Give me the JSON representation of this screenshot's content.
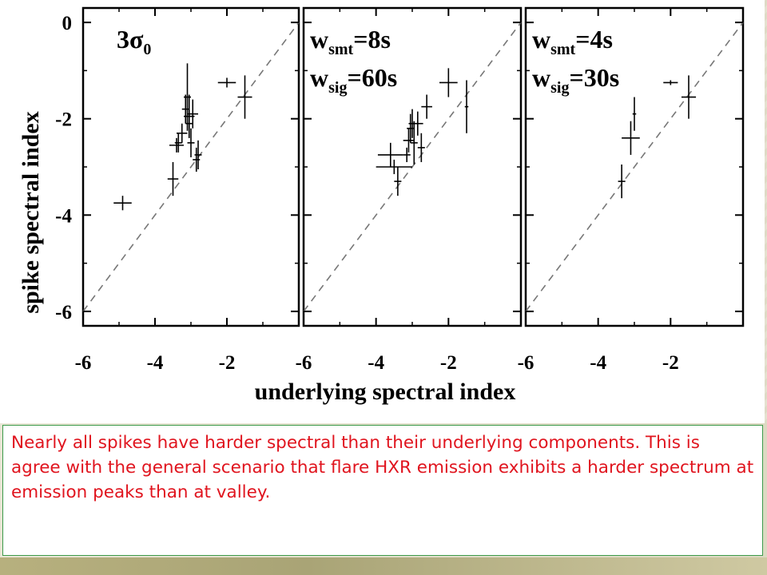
{
  "chart_data": {
    "type": "scatter",
    "xlabel": "underlying spectral index",
    "ylabel": "spike spectral index",
    "xlim": [
      -6,
      0
    ],
    "ylim": [
      -6.3,
      0.3
    ],
    "x_ticks": [
      -6,
      -4,
      -2
    ],
    "y_ticks": [
      0,
      -2,
      -4,
      -6
    ],
    "reference_line": "y = x (dashed)",
    "panels": [
      {
        "annotation": [
          {
            "main": "3σ",
            "sub": "0",
            "eq": ""
          }
        ],
        "points": [
          {
            "x": -4.9,
            "y": -3.75,
            "xerr": 0.25,
            "yerr": 0.15
          },
          {
            "x": -3.5,
            "y": -3.25,
            "xerr": 0.15,
            "yerr": 0.35
          },
          {
            "x": -3.4,
            "y": -2.55,
            "xerr": 0.2,
            "yerr": 0.15
          },
          {
            "x": -3.35,
            "y": -2.5,
            "xerr": 0.1,
            "yerr": 0.2
          },
          {
            "x": -3.25,
            "y": -2.3,
            "xerr": 0.15,
            "yerr": 0.2
          },
          {
            "x": -3.15,
            "y": -1.8,
            "xerr": 0.1,
            "yerr": 0.3
          },
          {
            "x": -3.1,
            "y": -1.55,
            "xerr": 0.1,
            "yerr": 0.7
          },
          {
            "x": -3.05,
            "y": -1.95,
            "xerr": 0.15,
            "yerr": 0.45
          },
          {
            "x": -3.05,
            "y": -2.1,
            "xerr": 0.1,
            "yerr": 0.3
          },
          {
            "x": -3.0,
            "y": -2.5,
            "xerr": 0.1,
            "yerr": 0.3
          },
          {
            "x": -2.95,
            "y": -1.9,
            "xerr": 0.15,
            "yerr": 0.3
          },
          {
            "x": -2.85,
            "y": -2.85,
            "xerr": 0.1,
            "yerr": 0.25
          },
          {
            "x": -2.8,
            "y": -2.75,
            "xerr": 0.1,
            "yerr": 0.3
          },
          {
            "x": -2.0,
            "y": -1.25,
            "xerr": 0.25,
            "yerr": 0.1
          },
          {
            "x": -1.5,
            "y": -1.55,
            "xerr": 0.2,
            "yerr": 0.45
          }
        ]
      },
      {
        "annotation": [
          {
            "main": "w",
            "sub": "smt",
            "eq": "=8s"
          },
          {
            "main": "w",
            "sub": "sig",
            "eq": "=60s"
          }
        ],
        "points": [
          {
            "x": -3.6,
            "y": -2.75,
            "xerr": 0.35,
            "yerr": 0.25
          },
          {
            "x": -3.5,
            "y": -3.0,
            "xerr": 0.5,
            "yerr": 0.15
          },
          {
            "x": -3.4,
            "y": -3.3,
            "xerr": 0.1,
            "yerr": 0.3
          },
          {
            "x": -3.15,
            "y": -2.75,
            "xerr": 0.1,
            "yerr": 0.15
          },
          {
            "x": -3.1,
            "y": -2.45,
            "xerr": 0.15,
            "yerr": 0.25
          },
          {
            "x": -3.05,
            "y": -2.2,
            "xerr": 0.1,
            "yerr": 0.3
          },
          {
            "x": -3.0,
            "y": -2.1,
            "xerr": 0.1,
            "yerr": 0.3
          },
          {
            "x": -2.95,
            "y": -2.5,
            "xerr": 0.1,
            "yerr": 0.45
          },
          {
            "x": -2.85,
            "y": -2.1,
            "xerr": 0.15,
            "yerr": 0.25
          },
          {
            "x": -2.75,
            "y": -2.6,
            "xerr": 0.1,
            "yerr": 0.3
          },
          {
            "x": -2.6,
            "y": -1.75,
            "xerr": 0.15,
            "yerr": 0.25
          },
          {
            "x": -2.0,
            "y": -1.25,
            "xerr": 0.25,
            "yerr": 0.3
          },
          {
            "x": -1.5,
            "y": -1.75,
            "xerr": 0.05,
            "yerr": 0.55
          }
        ]
      },
      {
        "annotation": [
          {
            "main": "w",
            "sub": "smt",
            "eq": "=4s"
          },
          {
            "main": "w",
            "sub": "sig",
            "eq": "=30s"
          }
        ],
        "points": [
          {
            "x": -3.35,
            "y": -3.3,
            "xerr": 0.1,
            "yerr": 0.35
          },
          {
            "x": -3.1,
            "y": -2.4,
            "xerr": 0.25,
            "yerr": 0.35
          },
          {
            "x": -3.0,
            "y": -1.9,
            "xerr": 0.05,
            "yerr": 0.35
          },
          {
            "x": -2.0,
            "y": -1.25,
            "xerr": 0.2,
            "yerr": 0.05
          },
          {
            "x": -1.5,
            "y": -1.55,
            "xerr": 0.2,
            "yerr": 0.45
          }
        ]
      }
    ]
  },
  "caption": {
    "text": "Nearly all spikes have harder spectral than their underlying components. This is agree with the general scenario that flare HXR emission exhibits a harder spectrum at emission peaks than at valley."
  }
}
